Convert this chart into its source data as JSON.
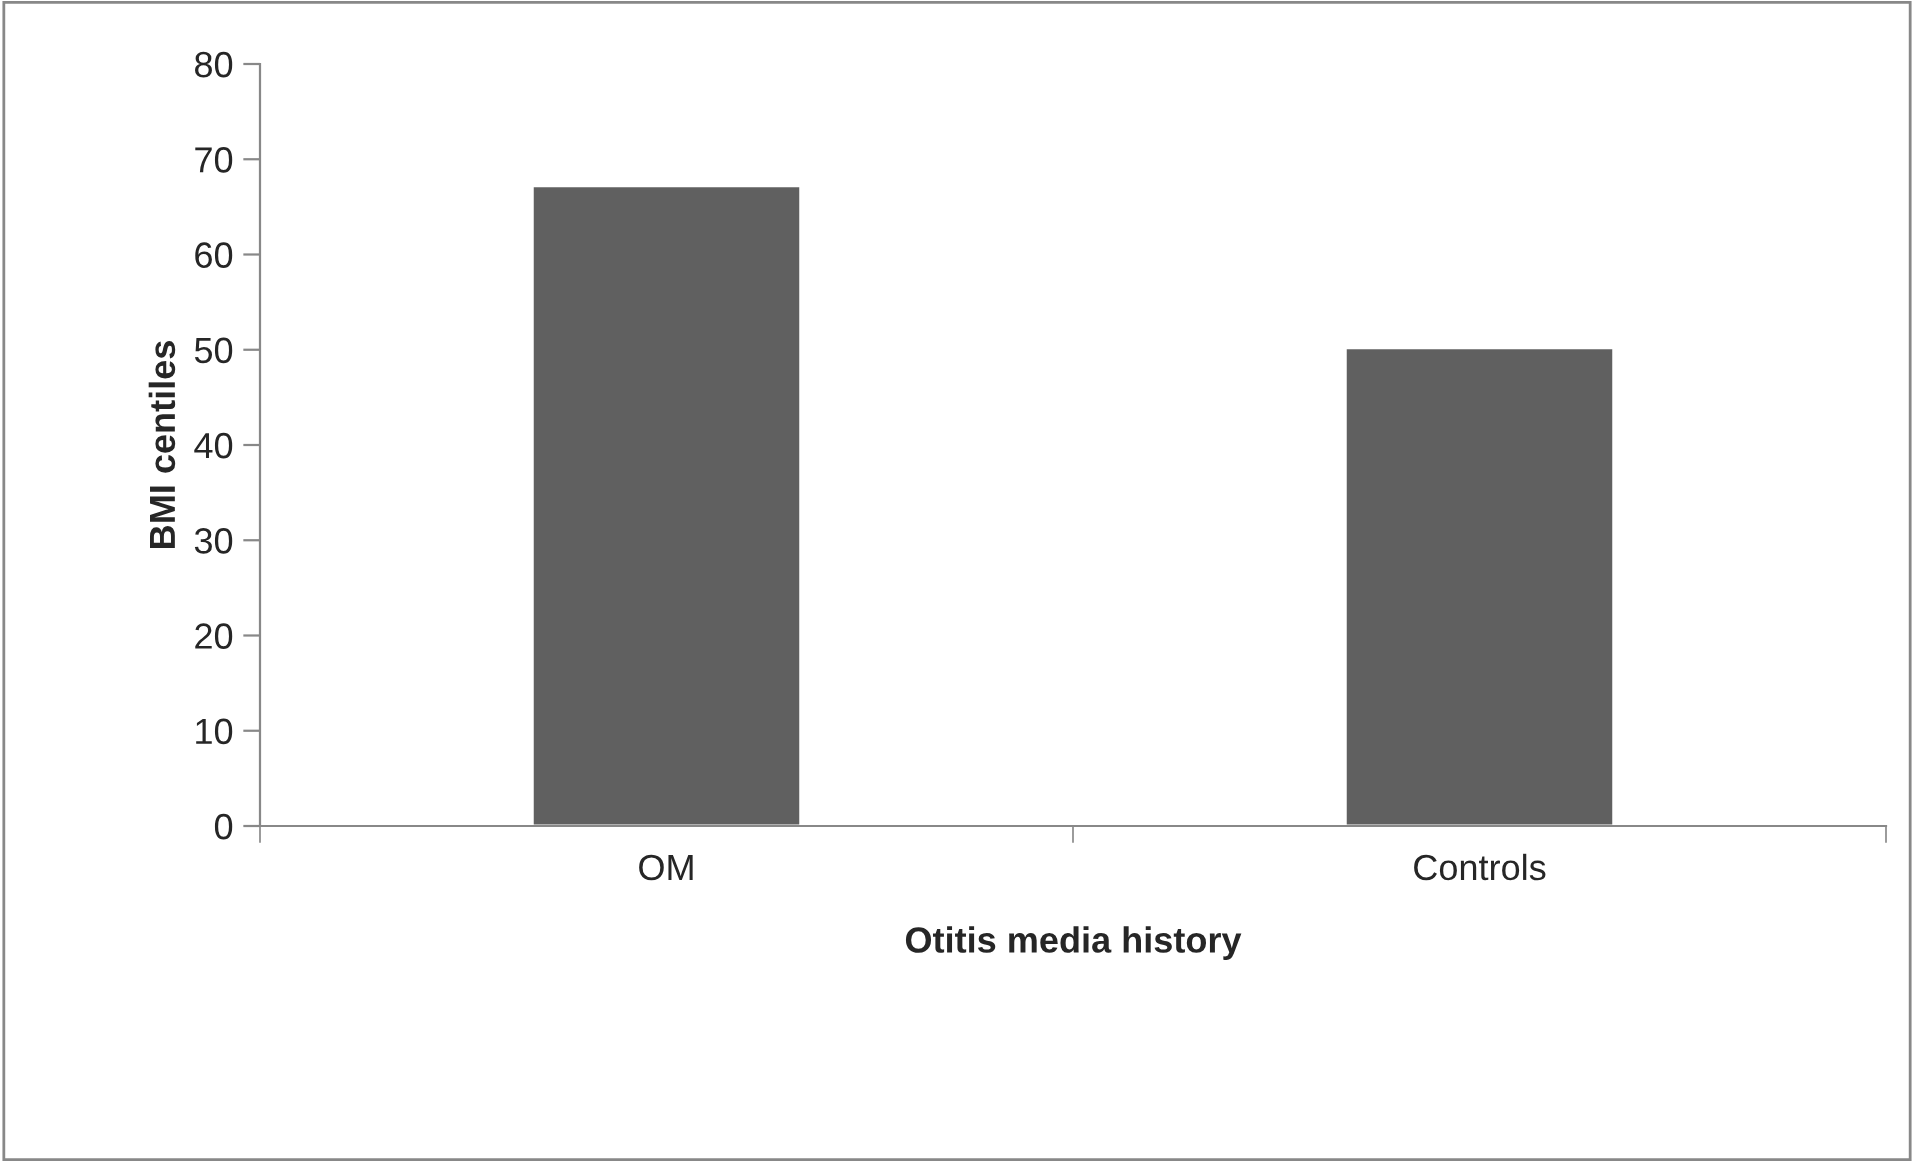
{
  "chart_data": {
    "type": "bar",
    "xlabel": "Otitis media history",
    "ylabel": "BMI centiles",
    "categories": [
      "OM",
      "Controls"
    ],
    "values": [
      67.2,
      50.2
    ],
    "color": "#606060",
    "ylim": [
      0,
      80
    ],
    "yticks": [
      0,
      10,
      20,
      30,
      40,
      50,
      60,
      70,
      80
    ],
    "grid": false,
    "legend": false
  }
}
